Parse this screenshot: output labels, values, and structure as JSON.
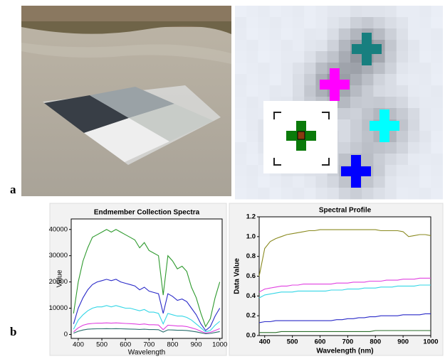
{
  "panel_labels": [
    "a",
    "b"
  ],
  "chart_data": [
    {
      "type": "line",
      "title": "Endmember Collection Spectra",
      "xlabel": "Wavelength",
      "ylabel": "Value",
      "x": [
        380,
        400,
        420,
        440,
        460,
        480,
        500,
        520,
        540,
        560,
        580,
        600,
        620,
        640,
        660,
        680,
        700,
        720,
        740,
        760,
        780,
        800,
        820,
        840,
        860,
        880,
        900,
        920,
        940,
        960,
        980,
        1000
      ],
      "xlim": [
        370,
        1010
      ],
      "xticks": [
        400,
        500,
        600,
        700,
        800,
        900,
        1000
      ],
      "ylim": [
        -1500,
        44000
      ],
      "yticks": [
        0,
        10000,
        20000,
        30000,
        40000
      ],
      "series": [
        {
          "color": "#2e9a2e",
          "values": [
            8000,
            20000,
            28000,
            33000,
            37000,
            38000,
            39000,
            40000,
            39000,
            40000,
            39000,
            38000,
            37000,
            36000,
            33000,
            35000,
            32000,
            31000,
            30000,
            15000,
            30000,
            28000,
            25000,
            26000,
            24000,
            18000,
            14000,
            8000,
            3000,
            6000,
            14000,
            20000
          ]
        },
        {
          "color": "#2a2ac8",
          "values": [
            4000,
            10000,
            14000,
            17000,
            19000,
            20000,
            20500,
            21000,
            20500,
            21000,
            20000,
            19500,
            19000,
            18500,
            17000,
            18000,
            16500,
            16000,
            15500,
            8000,
            15500,
            14500,
            13000,
            13500,
            12500,
            10000,
            7500,
            4000,
            1500,
            3000,
            7000,
            10000
          ]
        },
        {
          "color": "#33d6e6",
          "values": [
            2000,
            5500,
            7500,
            9000,
            10000,
            10500,
            10500,
            11000,
            10500,
            11000,
            10500,
            10000,
            10000,
            9500,
            9000,
            9500,
            8500,
            8500,
            8000,
            4000,
            8000,
            7500,
            7000,
            7000,
            6500,
            5500,
            4000,
            2500,
            1000,
            1500,
            3500,
            5000
          ]
        },
        {
          "color": "#e040e0",
          "values": [
            1000,
            2500,
            3500,
            4000,
            4200,
            4300,
            4300,
            4400,
            4300,
            4400,
            4300,
            4200,
            4100,
            4000,
            3800,
            4000,
            3700,
            3700,
            3600,
            1800,
            3500,
            3400,
            3200,
            3200,
            3000,
            2500,
            2000,
            1200,
            500,
            800,
            1500,
            2200
          ]
        },
        {
          "color": "#2a6e6e",
          "values": [
            500,
            1200,
            1700,
            2000,
            2100,
            2150,
            2150,
            2200,
            2150,
            2200,
            2150,
            2100,
            2050,
            2000,
            1900,
            2000,
            1850,
            1850,
            1800,
            900,
            1750,
            1700,
            1600,
            1600,
            1500,
            1250,
            1000,
            600,
            250,
            400,
            750,
            1100
          ]
        }
      ]
    },
    {
      "type": "line",
      "title": "Spectral Profile",
      "xlabel": "Wavelength (nm)",
      "ylabel": "Data Value",
      "x": [
        380,
        400,
        420,
        440,
        460,
        480,
        500,
        520,
        540,
        560,
        580,
        600,
        620,
        640,
        660,
        680,
        700,
        720,
        740,
        760,
        780,
        800,
        820,
        840,
        860,
        880,
        900,
        920,
        940,
        960,
        980,
        1000
      ],
      "xlim": [
        380,
        1000
      ],
      "xticks": [
        400,
        500,
        600,
        700,
        800,
        900,
        1000
      ],
      "ylim": [
        0,
        1.2
      ],
      "yticks": [
        {
          "value": 0,
          "label": "0.0"
        },
        0.2,
        0.4,
        0.6,
        0.8,
        {
          "value": 1,
          "label": "1.0"
        },
        1.2
      ],
      "series": [
        {
          "color": "#8a8a20",
          "values": [
            0.6,
            0.88,
            0.95,
            0.98,
            1.0,
            1.02,
            1.03,
            1.04,
            1.05,
            1.06,
            1.06,
            1.07,
            1.07,
            1.07,
            1.07,
            1.07,
            1.07,
            1.07,
            1.07,
            1.07,
            1.07,
            1.07,
            1.06,
            1.06,
            1.06,
            1.06,
            1.05,
            1.0,
            1.01,
            1.02,
            1.02,
            1.01
          ]
        },
        {
          "color": "#e040e0",
          "values": [
            0.44,
            0.47,
            0.48,
            0.49,
            0.5,
            0.5,
            0.51,
            0.51,
            0.52,
            0.52,
            0.52,
            0.52,
            0.52,
            0.52,
            0.53,
            0.53,
            0.53,
            0.54,
            0.54,
            0.54,
            0.55,
            0.55,
            0.55,
            0.56,
            0.56,
            0.56,
            0.57,
            0.57,
            0.57,
            0.58,
            0.58,
            0.58
          ]
        },
        {
          "color": "#33d6e6",
          "values": [
            0.38,
            0.41,
            0.42,
            0.43,
            0.44,
            0.44,
            0.44,
            0.45,
            0.45,
            0.45,
            0.45,
            0.45,
            0.45,
            0.46,
            0.46,
            0.46,
            0.47,
            0.47,
            0.47,
            0.48,
            0.48,
            0.48,
            0.49,
            0.49,
            0.49,
            0.5,
            0.5,
            0.5,
            0.5,
            0.51,
            0.51,
            0.51
          ]
        },
        {
          "color": "#2a2ac8",
          "values": [
            0.13,
            0.14,
            0.14,
            0.15,
            0.15,
            0.15,
            0.15,
            0.15,
            0.15,
            0.15,
            0.15,
            0.15,
            0.15,
            0.15,
            0.16,
            0.16,
            0.17,
            0.17,
            0.18,
            0.18,
            0.19,
            0.19,
            0.2,
            0.2,
            0.2,
            0.2,
            0.21,
            0.21,
            0.21,
            0.21,
            0.22,
            0.22
          ]
        },
        {
          "color": "#2a6e2a",
          "values": [
            0.03,
            0.03,
            0.03,
            0.03,
            0.04,
            0.04,
            0.04,
            0.04,
            0.04,
            0.04,
            0.04,
            0.04,
            0.04,
            0.04,
            0.04,
            0.04,
            0.04,
            0.04,
            0.04,
            0.04,
            0.04,
            0.05,
            0.05,
            0.05,
            0.05,
            0.05,
            0.05,
            0.05,
            0.05,
            0.05,
            0.05,
            0.05
          ]
        }
      ]
    }
  ]
}
